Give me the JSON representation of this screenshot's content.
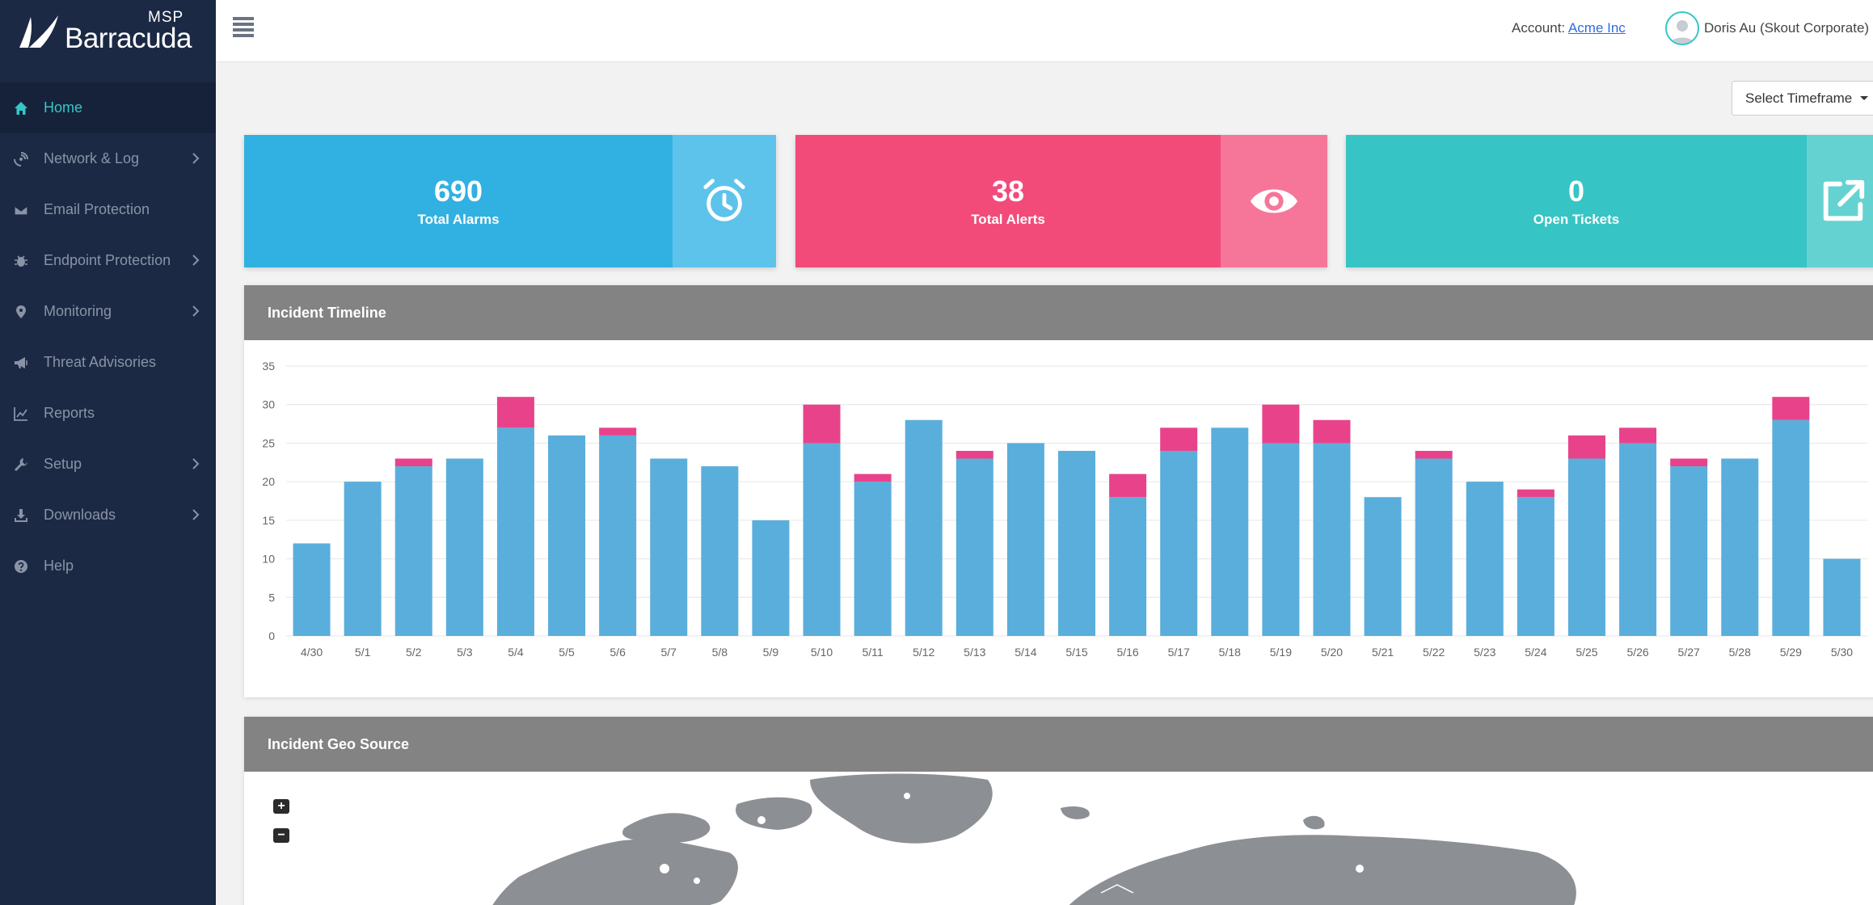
{
  "brand": {
    "msp": "MSP",
    "name": "Barracuda"
  },
  "sidebar": {
    "items": [
      {
        "label": "Home",
        "icon": "home-icon",
        "active": true,
        "chevron": false
      },
      {
        "label": "Network & Log",
        "icon": "network-icon",
        "active": false,
        "chevron": true
      },
      {
        "label": "Email Protection",
        "icon": "envelope-icon",
        "active": false,
        "chevron": false
      },
      {
        "label": "Endpoint Protection",
        "icon": "bug-icon",
        "active": false,
        "chevron": true
      },
      {
        "label": "Monitoring",
        "icon": "map-pin-icon",
        "active": false,
        "chevron": true
      },
      {
        "label": "Threat Advisories",
        "icon": "megaphone-icon",
        "active": false,
        "chevron": false
      },
      {
        "label": "Reports",
        "icon": "line-chart-icon",
        "active": false,
        "chevron": false
      },
      {
        "label": "Setup",
        "icon": "wrench-icon",
        "active": false,
        "chevron": true
      },
      {
        "label": "Downloads",
        "icon": "download-icon",
        "active": false,
        "chevron": true
      },
      {
        "label": "Help",
        "icon": "question-icon",
        "active": false,
        "chevron": false
      }
    ]
  },
  "header": {
    "account_label": "Account:",
    "account_name": "Acme Inc",
    "user_name": "Doris Au (Skout Corporate)"
  },
  "timeframe": {
    "label": "Select Timeframe"
  },
  "cards": [
    {
      "value": "690",
      "label": "Total Alarms",
      "icon": "alarm-clock-icon",
      "color": "#31b1e1",
      "side_color": "#5ec3ea"
    },
    {
      "value": "38",
      "label": "Total Alerts",
      "icon": "eye-icon",
      "color": "#f24b7a",
      "side_color": "#f6769a"
    },
    {
      "value": "0",
      "label": "Open Tickets",
      "icon": "external-link-icon",
      "color": "#37c4c4",
      "side_color": "#64d2d1"
    }
  ],
  "timeline": {
    "title": "Incident Timeline"
  },
  "chart_data": {
    "type": "bar",
    "stacked": true,
    "title": "",
    "xlabel": "",
    "ylabel": "",
    "ylim": [
      0,
      35
    ],
    "yticks": [
      0,
      5,
      10,
      15,
      20,
      25,
      30,
      35
    ],
    "grid": true,
    "categories": [
      "4/30",
      "5/1",
      "5/2",
      "5/3",
      "5/4",
      "5/5",
      "5/6",
      "5/7",
      "5/8",
      "5/9",
      "5/10",
      "5/11",
      "5/12",
      "5/13",
      "5/14",
      "5/15",
      "5/16",
      "5/17",
      "5/18",
      "5/19",
      "5/20",
      "5/21",
      "5/22",
      "5/23",
      "5/24",
      "5/25",
      "5/26",
      "5/27",
      "5/28",
      "5/29",
      "5/30"
    ],
    "series": [
      {
        "color": "#5aaedc",
        "values": [
          12,
          20,
          22,
          23,
          27,
          26,
          26,
          23,
          22,
          15,
          25,
          20,
          28,
          23,
          25,
          24,
          18,
          24,
          27,
          25,
          25,
          18,
          23,
          20,
          18,
          23,
          25,
          22,
          23,
          28,
          10
        ]
      },
      {
        "color": "#e8438a",
        "values": [
          0,
          0,
          1,
          0,
          4,
          0,
          1,
          0,
          0,
          0,
          5,
          1,
          0,
          1,
          0,
          0,
          3,
          3,
          0,
          5,
          3,
          0,
          1,
          0,
          1,
          3,
          2,
          1,
          0,
          3,
          0
        ]
      }
    ]
  },
  "geo": {
    "title": "Incident Geo Source",
    "zoom_in": "+",
    "zoom_out": "−"
  }
}
